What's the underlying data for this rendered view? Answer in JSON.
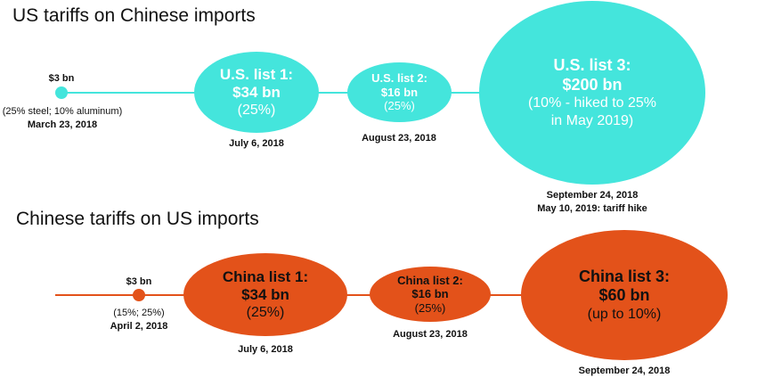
{
  "us_section": {
    "title": "US tariffs on Chinese imports",
    "color": "#44e5dc",
    "start": {
      "amount": "$3 bn",
      "rate": "(25% steel; 10% aluminum)",
      "date": "March 23, 2018"
    },
    "lists": [
      {
        "name": "U.S. list 1:",
        "amount": "$34 bn",
        "rate": "(25%)",
        "date": "July 6, 2018"
      },
      {
        "name": "U.S. list 2:",
        "amount": "$16 bn",
        "rate": "(25%)",
        "date": "August 23, 2018"
      },
      {
        "name": "U.S. list 3:",
        "amount": "$200 bn",
        "rate": "(10% - hiked to 25% in May 2019)",
        "date": "September 24, 2018",
        "date_extra": "May 10, 2019: tariff hike"
      }
    ]
  },
  "china_section": {
    "title": "Chinese tariffs on US imports",
    "color": "#e3521a",
    "start": {
      "amount": "$3 bn",
      "rate": "(15%; 25%)",
      "date": "April 2, 2018"
    },
    "lists": [
      {
        "name": "China list 1:",
        "amount": "$34 bn",
        "rate": "(25%)",
        "date": "July 6, 2018"
      },
      {
        "name": "China list 2:",
        "amount": "$16 bn",
        "rate": "(25%)",
        "date": "August 23, 2018"
      },
      {
        "name": "China list 3:",
        "amount": "$60 bn",
        "rate": "(up to 10%)",
        "date": "September 24, 2018"
      }
    ]
  }
}
